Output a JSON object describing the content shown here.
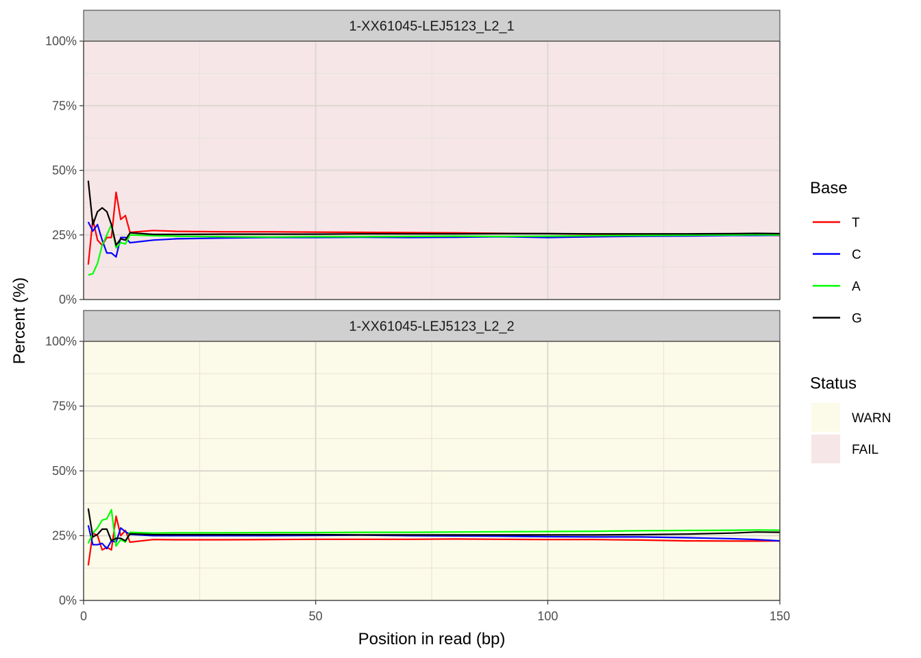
{
  "chart_data": {
    "type": "line",
    "xlabel": "Position in read (bp)",
    "ylabel": "Percent (%)",
    "xlim": [
      0,
      150
    ],
    "ylim": [
      0,
      100
    ],
    "x_ticks": [
      0,
      50,
      100,
      150
    ],
    "x_tick_labels": [
      "0",
      "50",
      "100",
      "150"
    ],
    "y_ticks": [
      0,
      25,
      50,
      75,
      100
    ],
    "y_tick_labels": [
      "0%",
      "25%",
      "50%",
      "75%",
      "100%"
    ],
    "grid": true,
    "legend_position": "right",
    "colors": {
      "T": "#ff0000",
      "C": "#0000ff",
      "A": "#00ff00",
      "G": "#000000",
      "WARN": "#fcfbe9",
      "FAIL": "#f6e6e8"
    },
    "legends": [
      {
        "title": "Base",
        "items": [
          {
            "label": "T",
            "color": "#ff0000"
          },
          {
            "label": "C",
            "color": "#0000ff"
          },
          {
            "label": "A",
            "color": "#00ff00"
          },
          {
            "label": "G",
            "color": "#000000"
          }
        ]
      },
      {
        "title": "Status",
        "items": [
          {
            "label": "WARN",
            "color": "#fcfbe9"
          },
          {
            "label": "FAIL",
            "color": "#f6e6e8"
          }
        ]
      }
    ],
    "panels": [
      {
        "strip": "1-XX61045-LEJ5123_L2_1",
        "status": "FAIL",
        "x": [
          1,
          2,
          3,
          4,
          5,
          6,
          7,
          8,
          9,
          10,
          15,
          20,
          30,
          40,
          50,
          60,
          70,
          80,
          90,
          100,
          110,
          120,
          130,
          140,
          145,
          150
        ],
        "series": [
          {
            "name": "T",
            "color": "#ff0000",
            "values": [
              13.5,
              31,
              23,
              21,
              24,
              24,
              41.5,
              31,
              32.5,
              26,
              26.7,
              26.4,
              26.2,
              26.2,
              26.1,
              26.0,
              25.9,
              25.8,
              25.6,
              25.5,
              25.3,
              25.2,
              25.1,
              25.0,
              24.9,
              24.8
            ]
          },
          {
            "name": "C",
            "color": "#0000ff",
            "values": [
              30,
              26.5,
              29,
              23,
              18,
              18,
              16.5,
              24,
              24,
              22,
              23,
              23.5,
              23.8,
              24.0,
              24.0,
              24.1,
              24.0,
              24.1,
              24.3,
              24.0,
              24.3,
              24.5,
              24.6,
              24.8,
              24.8,
              24.9
            ]
          },
          {
            "name": "A",
            "color": "#00ff00",
            "values": [
              9.5,
              10,
              14,
              21,
              25,
              29,
              20,
              22,
              21.5,
              25,
              24.7,
              24.5,
              24.3,
              24.2,
              24.3,
              24.3,
              24.4,
              24.5,
              24.4,
              24.5,
              24.7,
              24.8,
              24.9,
              25.0,
              25.1,
              25.0
            ]
          },
          {
            "name": "G",
            "color": "#000000",
            "values": [
              46,
              29,
              34,
              35.5,
              34,
              29,
              21,
              23.5,
              23,
              25.8,
              25.2,
              25.2,
              25.3,
              25.3,
              25.3,
              25.4,
              25.4,
              25.4,
              25.5,
              25.5,
              25.4,
              25.4,
              25.4,
              25.5,
              25.6,
              25.5
            ]
          }
        ]
      },
      {
        "strip": "1-XX61045-LEJ5123_L2_2",
        "status": "WARN",
        "x": [
          1,
          2,
          3,
          4,
          5,
          6,
          7,
          8,
          9,
          10,
          15,
          20,
          30,
          40,
          50,
          60,
          70,
          80,
          90,
          100,
          110,
          120,
          130,
          140,
          145,
          150
        ],
        "series": [
          {
            "name": "T",
            "color": "#ff0000",
            "values": [
              13.5,
              26,
              25,
              19.5,
              20.5,
              19.5,
              32.5,
              25,
              27,
              22.5,
              23.5,
              23.4,
              23.4,
              23.5,
              23.6,
              23.6,
              23.6,
              23.7,
              23.6,
              23.5,
              23.5,
              23.3,
              23.0,
              22.9,
              22.9,
              23.0
            ]
          },
          {
            "name": "C",
            "color": "#0000ff",
            "values": [
              29,
              21.5,
              21.5,
              22,
              20,
              23,
              22.5,
              28,
              26.5,
              25.5,
              25.0,
              25.0,
              25.0,
              25.0,
              25.1,
              25.2,
              25.0,
              24.9,
              24.8,
              24.6,
              24.5,
              24.5,
              24.2,
              23.8,
              23.5,
              23.0
            ]
          },
          {
            "name": "A",
            "color": "#00ff00",
            "values": [
              22,
              26,
              28,
              31,
              31.5,
              35,
              21,
              23.5,
              22.5,
              26.3,
              26.0,
              26.1,
              26.1,
              26.2,
              26.2,
              26.3,
              26.3,
              26.4,
              26.5,
              26.6,
              26.7,
              26.9,
              27.0,
              27.1,
              27.2,
              27.1
            ]
          },
          {
            "name": "G",
            "color": "#000000",
            "values": [
              35.5,
              24.5,
              25.5,
              27.5,
              27.5,
              23,
              24,
              24,
              23,
              25.7,
              25.4,
              25.4,
              25.4,
              25.4,
              25.4,
              25.3,
              25.3,
              25.3,
              25.3,
              25.3,
              25.3,
              25.4,
              25.6,
              26.0,
              26.4,
              26.3
            ]
          }
        ]
      }
    ]
  }
}
